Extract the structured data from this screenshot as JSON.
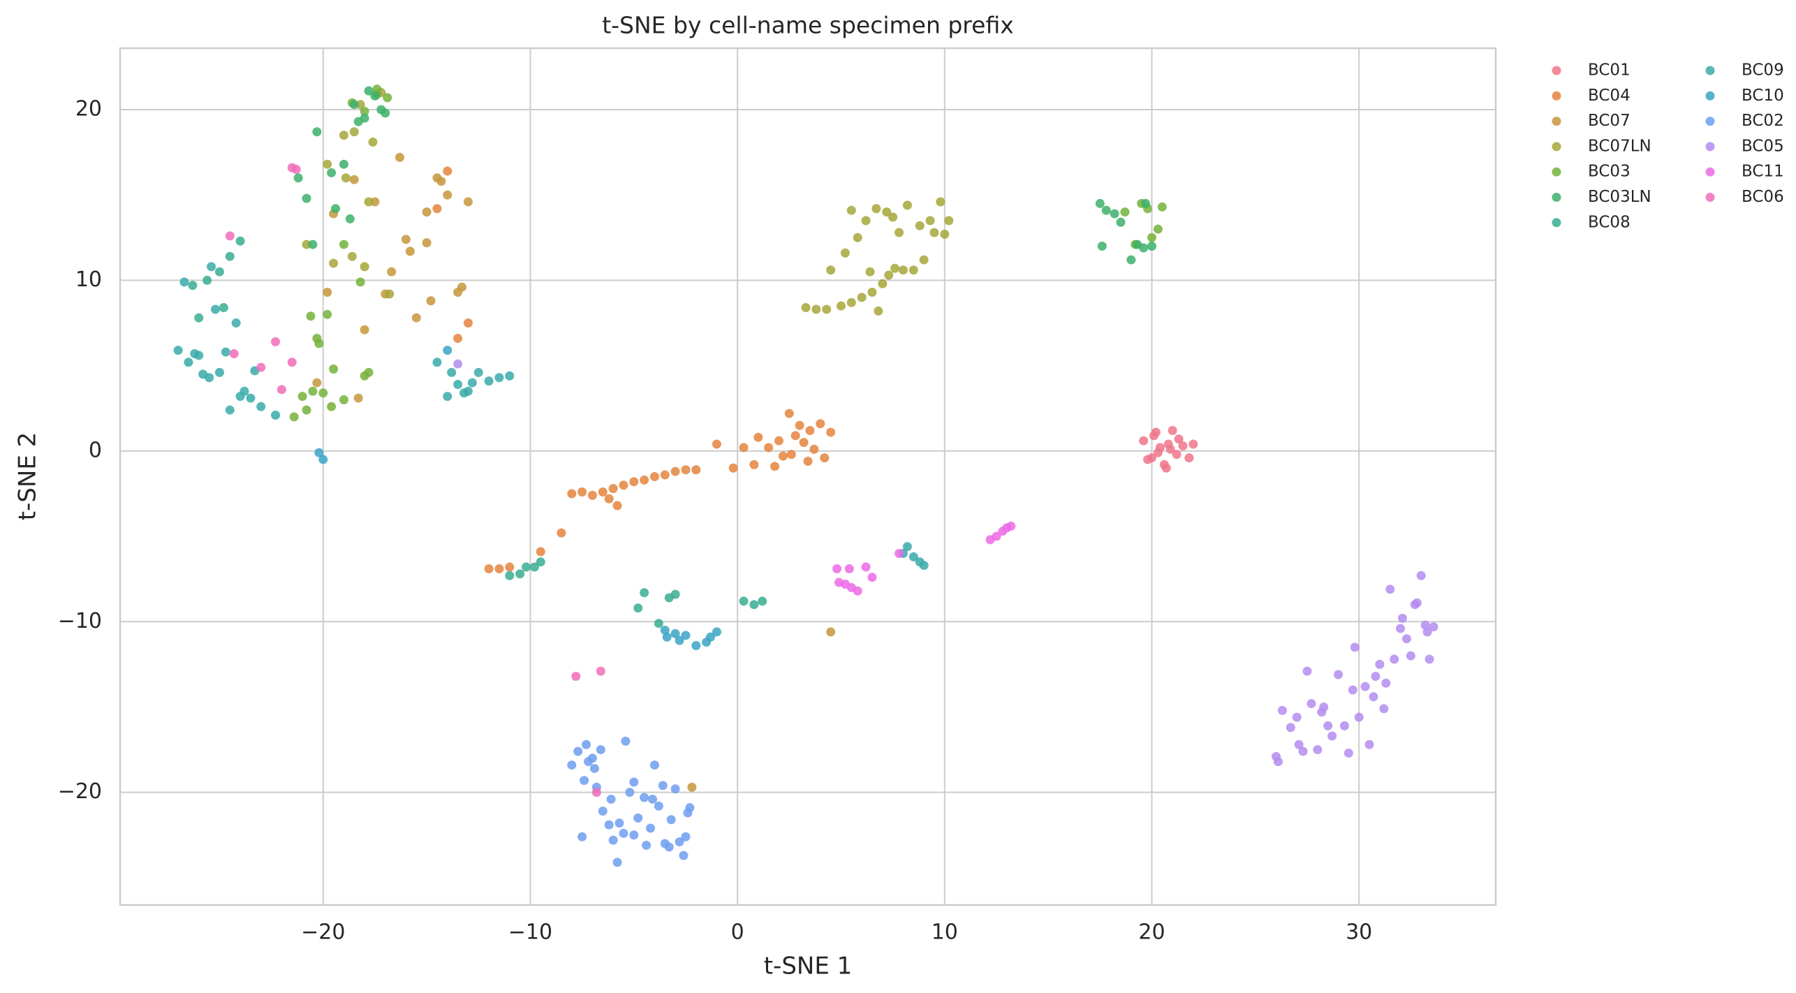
{
  "chart_data": {
    "type": "scatter",
    "title": "t-SNE by cell-name specimen prefix",
    "x_label": "t-SNE 1",
    "y_label": "t-SNE 2",
    "xlim": [
      -29.8,
      36.6
    ],
    "ylim": [
      -26.6,
      23.6
    ],
    "xticks": [
      {
        "value": -20,
        "label": "−20"
      },
      {
        "value": -10,
        "label": "−10"
      },
      0,
      10,
      20,
      30
    ],
    "yticks": [
      {
        "value": -20,
        "label": "−20"
      },
      {
        "value": -10,
        "label": "−10"
      },
      0,
      10,
      20
    ],
    "grid": true,
    "legend_position": "outside-upper-right",
    "legend_columns": 2,
    "series": [
      {
        "name": "BC01",
        "color": "#f0758a",
        "x": [
          19.6,
          20.0,
          20.2,
          20.4,
          20.6,
          20.8,
          21.0,
          21.2,
          21.5,
          21.8,
          22.0,
          20.3,
          20.7,
          19.8,
          21.3,
          20.1,
          20.9
        ],
        "values": [
          0.6,
          -0.4,
          1.1,
          0.2,
          -0.8,
          0.4,
          1.2,
          -0.2,
          0.3,
          -0.4,
          0.4,
          -0.1,
          -1.0,
          -0.5,
          0.7,
          0.9,
          0.1
        ]
      },
      {
        "name": "BC04",
        "color": "#e5843d",
        "x": [
          -12,
          -11.5,
          -11,
          -9.5,
          -8.5,
          -8,
          -7.5,
          -7,
          -6.5,
          -6,
          -5.5,
          -5,
          -4.5,
          -4,
          -3.5,
          -3,
          -2.5,
          -2,
          -5.8,
          -1,
          0.3,
          0.8,
          1,
          1.5,
          2,
          2.2,
          2.5,
          2.8,
          3,
          3.2,
          3.5,
          3.7,
          4,
          4.2,
          4.5,
          1.8,
          2.6,
          3.4,
          -0.2,
          -14,
          -14.5,
          -13,
          -13.5,
          -6.2
        ],
        "values": [
          -6.9,
          -6.9,
          -6.8,
          -5.9,
          -4.8,
          -2.5,
          -2.4,
          -2.6,
          -2.4,
          -2.2,
          -2.0,
          -1.8,
          -1.7,
          -1.5,
          -1.4,
          -1.2,
          -1.1,
          -1.1,
          -3.2,
          0.4,
          0.2,
          -0.8,
          0.8,
          0.2,
          0.6,
          -0.3,
          2.2,
          0.9,
          1.5,
          0.5,
          1.2,
          0.1,
          1.6,
          -0.4,
          1.1,
          -0.9,
          -0.2,
          -0.6,
          -1.0,
          16.4,
          14.2,
          7.5,
          6.6,
          -2.8
        ]
      },
      {
        "name": "BC07",
        "color": "#c6963a",
        "x": [
          -19.5,
          -18.5,
          -17.5,
          -16.3,
          -15.5,
          -15,
          -14.5,
          -14.3,
          -16,
          -15.8,
          -14.8,
          -13.5,
          -13,
          -17,
          -18,
          -18.3,
          -19.8,
          -20.3,
          -16.7,
          4.5,
          -2.2,
          -13.3,
          -15,
          -14
        ],
        "values": [
          13.9,
          15.9,
          14.6,
          17.2,
          7.8,
          14,
          16,
          15.8,
          12.4,
          11.7,
          8.8,
          9.3,
          14.6,
          9.2,
          7.1,
          3.1,
          9.3,
          4.0,
          10.5,
          -10.6,
          -19.7,
          9.6,
          12.2,
          15.0
        ]
      },
      {
        "name": "BC07LN",
        "color": "#a6a63a",
        "x": [
          3.3,
          3.8,
          4.3,
          5,
          5.5,
          6,
          6.5,
          6.8,
          7,
          7.3,
          7.6,
          8,
          8.5,
          9,
          9.5,
          10,
          10.2,
          4.5,
          5.2,
          5.8,
          6.2,
          7.8,
          8.8,
          9.3,
          6.7,
          7.2,
          7.5,
          8.2,
          9.8,
          5.5,
          6.4,
          -19,
          -18.5,
          -17.6,
          -18.2,
          -19.8,
          -17.8,
          -18.6,
          -16.8,
          -20.8,
          -19.5,
          -18,
          -17.2,
          -18.9
        ],
        "values": [
          8.4,
          8.3,
          8.3,
          8.5,
          8.7,
          9,
          9.3,
          8.2,
          9.8,
          10.3,
          10.7,
          10.6,
          10.6,
          11.2,
          12.8,
          12.7,
          13.5,
          10.6,
          11.6,
          12.5,
          13.5,
          12.8,
          13.2,
          13.5,
          14.2,
          14.0,
          13.7,
          14.4,
          14.6,
          14.1,
          10.5,
          18.5,
          18.7,
          18.1,
          20.3,
          16.8,
          14.6,
          11.4,
          9.2,
          12.1,
          11.0,
          10.8,
          21.0,
          16.0
        ]
      },
      {
        "name": "BC03",
        "color": "#74b13a",
        "x": [
          -21,
          -20.5,
          -20,
          -19.5,
          -19,
          -20.2,
          -20.8,
          -19.8,
          -18,
          -17.8,
          -19.6,
          -21.4,
          -20.6,
          -19,
          -18.2,
          -17.4,
          19.5,
          20,
          20.3,
          19.8,
          18.7,
          20.5,
          19.2,
          -17.4,
          -18,
          -16.9,
          -18.6,
          -20.3
        ],
        "values": [
          3.2,
          3.5,
          3.4,
          4.8,
          3.0,
          6.3,
          2.4,
          8.0,
          4.4,
          4.6,
          2.6,
          2.0,
          7.9,
          12.1,
          9.9,
          20.9,
          14.5,
          12.5,
          13.0,
          14.2,
          14.0,
          14.3,
          12.1,
          21.2,
          19.9,
          20.7,
          20.4,
          6.6
        ]
      },
      {
        "name": "BC03LN",
        "color": "#3cb06a",
        "x": [
          -18.5,
          -18,
          -17.5,
          -17,
          -18.3,
          -17.8,
          -17.2,
          -19,
          -20.3,
          -19.6,
          -21.2,
          -20.8,
          -19.4,
          -20.5,
          -18.7,
          17.5,
          17.8,
          18.5,
          19,
          19.3,
          19.7,
          20,
          17.6,
          18.2,
          19.6
        ],
        "values": [
          20.3,
          19.5,
          20.8,
          19.8,
          19.3,
          21.1,
          20.0,
          16.8,
          18.7,
          16.3,
          16,
          14.8,
          14.2,
          12.1,
          13.6,
          14.5,
          14.1,
          13.4,
          11.2,
          12.1,
          14.5,
          12,
          12.0,
          13.9,
          11.9
        ]
      },
      {
        "name": "BC08",
        "color": "#38ad92",
        "x": [
          -11,
          -10.5,
          -10.2,
          -9.5,
          -9.8,
          -4.5,
          -3.8,
          -3.3,
          -3,
          -4.8,
          0.3,
          0.8,
          1.2,
          -24,
          -25,
          -26,
          -24.8,
          -25.6,
          -26.3,
          -24.5
        ],
        "values": [
          -7.3,
          -7.2,
          -6.8,
          -6.5,
          -6.8,
          -8.3,
          -10.1,
          -8.6,
          -8.4,
          -9.2,
          -8.8,
          -9.0,
          -8.8,
          12.3,
          10.5,
          7.8,
          8.4,
          10.0,
          9.7,
          11.4
        ]
      },
      {
        "name": "BC09",
        "color": "#39aaaa",
        "x": [
          -27,
          -26.5,
          -26,
          -25.5,
          -25,
          -24.5,
          -24,
          -23.5,
          -23,
          -22.3,
          -25.8,
          -26.2,
          -24.7,
          -23.8,
          -25.2,
          -26.7,
          -24.2,
          -25.4,
          -14.5,
          -14,
          -13.5,
          -13,
          -12.5,
          -12,
          -11.5,
          -11,
          -13.8,
          -12.8,
          8,
          8.5,
          9,
          8.2,
          8.8,
          -13.2,
          -23.3
        ],
        "values": [
          5.9,
          5.2,
          5.6,
          4.3,
          4.6,
          2.4,
          3.2,
          3.1,
          2.6,
          2.1,
          4.5,
          5.7,
          5.8,
          3.5,
          8.3,
          9.9,
          7.5,
          10.8,
          5.2,
          3.2,
          3.9,
          3.5,
          4.6,
          4.1,
          4.3,
          4.4,
          4.6,
          4.0,
          -6.0,
          -6.2,
          -6.7,
          -5.6,
          -6.5,
          3.4,
          4.7
        ]
      },
      {
        "name": "BC10",
        "color": "#3ba5c5",
        "x": [
          -3,
          -2.5,
          -2,
          -1.5,
          -1,
          -1.3,
          -3.5,
          -2.8,
          -3.4,
          -20.2,
          -20,
          -14
        ],
        "values": [
          -10.7,
          -10.8,
          -11.4,
          -11.2,
          -10.6,
          -10.9,
          -10.5,
          -11.1,
          -10.9,
          -0.1,
          -0.5,
          5.9
        ]
      },
      {
        "name": "BC02",
        "color": "#6e9ef0",
        "x": [
          -8,
          -7.7,
          -7.4,
          -7.2,
          -7,
          -6.8,
          -6.5,
          -6.2,
          -6,
          -5.8,
          -5.5,
          -5.2,
          -5,
          -4.8,
          -4.5,
          -4.2,
          -4,
          -3.8,
          -3.5,
          -3.2,
          -3,
          -2.8,
          -2.5,
          -2.3,
          -7.5,
          -6.6,
          -5.4,
          -4.4,
          -3.3,
          -2.6,
          -6.1,
          -5.0,
          -4.1,
          -7.3,
          -6.9,
          -5.7,
          -2.4,
          -3.6
        ],
        "values": [
          -18.4,
          -17.6,
          -19.3,
          -18.2,
          -18.0,
          -19.7,
          -21.1,
          -21.9,
          -22.8,
          -24.1,
          -22.4,
          -20.0,
          -19.4,
          -21.5,
          -20.3,
          -22.1,
          -18.4,
          -20.8,
          -23.0,
          -21.6,
          -19.8,
          -22.9,
          -22.6,
          -20.9,
          -22.6,
          -17.5,
          -17.0,
          -23.1,
          -23.2,
          -23.7,
          -20.4,
          -22.5,
          -20.4,
          -17.2,
          -18.6,
          -21.8,
          -21.2,
          -19.6
        ]
      },
      {
        "name": "BC05",
        "color": "#b48cf0",
        "x": [
          26,
          26.3,
          26.7,
          27,
          27.3,
          27.7,
          28,
          28.3,
          28.7,
          29,
          29.3,
          29.7,
          30,
          30.3,
          30.7,
          31,
          31.3,
          31.7,
          32,
          32.3,
          32.7,
          33,
          33.3,
          33.6,
          26.1,
          27.5,
          28.5,
          29.5,
          30.5,
          31.5,
          32.5,
          33.2,
          31.2,
          32.8,
          30.8,
          29.8,
          28.2,
          27.1,
          33.4,
          32.1,
          -13.5
        ],
        "values": [
          -17.9,
          -15.2,
          -16.2,
          -15.6,
          -17.6,
          -14.8,
          -17.5,
          -15.0,
          -16.7,
          -13.1,
          -16.1,
          -14.0,
          -15.6,
          -13.8,
          -14.4,
          -12.5,
          -13.6,
          -12.2,
          -10.4,
          -11.0,
          -9.0,
          -7.3,
          -10.6,
          -10.3,
          -18.2,
          -12.9,
          -16.1,
          -17.7,
          -17.2,
          -8.1,
          -12.0,
          -10.2,
          -15.1,
          -8.9,
          -13.2,
          -11.5,
          -15.3,
          -17.2,
          -12.2,
          -9.8,
          5.1
        ]
      },
      {
        "name": "BC11",
        "color": "#ec6ae5",
        "x": [
          4.8,
          5.2,
          5.5,
          5.8,
          6.2,
          6.5,
          4.9,
          5.4,
          7.8,
          12.2,
          12.5,
          12.8,
          13,
          13.2
        ],
        "values": [
          -6.9,
          -7.8,
          -8.0,
          -8.2,
          -6.8,
          -7.4,
          -7.7,
          -6.9,
          -6.0,
          -5.2,
          -5.0,
          -4.7,
          -4.5,
          -4.4
        ]
      },
      {
        "name": "BC06",
        "color": "#f06cb8",
        "x": [
          -24.5,
          -21.5,
          -24.3,
          -23,
          -22.3,
          -21.5,
          -22,
          -7.8,
          -6.6,
          -6.8,
          -21.3
        ],
        "values": [
          12.6,
          16.6,
          5.7,
          4.9,
          6.4,
          5.2,
          3.6,
          -13.2,
          -12.9,
          -20.0,
          16.5
        ]
      }
    ]
  }
}
